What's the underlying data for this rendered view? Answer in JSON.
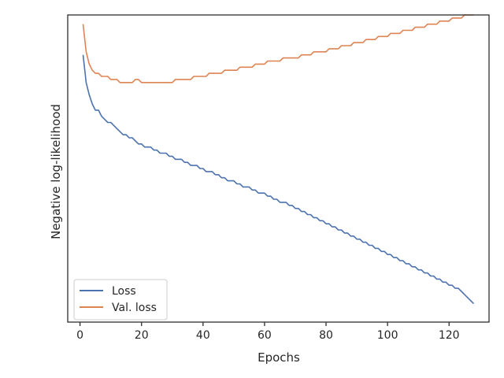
{
  "chart_data": {
    "type": "line",
    "xlabel": "Epochs",
    "ylabel": "Negative log-likelihood",
    "xlim": [
      -4,
      133
    ],
    "ylim": [
      0,
      1
    ],
    "xticks": [
      0,
      20,
      40,
      60,
      80,
      100,
      120
    ],
    "xtick_labels": [
      "0",
      "20",
      "40",
      "60",
      "80",
      "100",
      "120"
    ],
    "yticks_visible": false,
    "grid": false,
    "legend_position": "lower-left",
    "series": [
      {
        "name": "Loss",
        "color": "#4c72b0",
        "x": [
          1,
          2,
          3,
          4,
          5,
          6,
          7,
          8,
          9,
          10,
          11,
          12,
          13,
          14,
          15,
          16,
          17,
          18,
          19,
          20,
          21,
          22,
          23,
          24,
          25,
          26,
          27,
          28,
          29,
          30,
          31,
          32,
          33,
          34,
          35,
          36,
          37,
          38,
          39,
          40,
          41,
          42,
          43,
          44,
          45,
          46,
          47,
          48,
          49,
          50,
          51,
          52,
          53,
          54,
          55,
          56,
          57,
          58,
          59,
          60,
          61,
          62,
          63,
          64,
          65,
          66,
          67,
          68,
          69,
          70,
          71,
          72,
          73,
          74,
          75,
          76,
          77,
          78,
          79,
          80,
          81,
          82,
          83,
          84,
          85,
          86,
          87,
          88,
          89,
          90,
          91,
          92,
          93,
          94,
          95,
          96,
          97,
          98,
          99,
          100,
          101,
          102,
          103,
          104,
          105,
          106,
          107,
          108,
          109,
          110,
          111,
          112,
          113,
          114,
          115,
          116,
          117,
          118,
          119,
          120,
          121,
          122,
          123,
          124,
          125,
          126,
          127,
          128
        ],
        "y": [
          0.87,
          0.78,
          0.74,
          0.71,
          0.69,
          0.69,
          0.67,
          0.66,
          0.65,
          0.65,
          0.64,
          0.63,
          0.62,
          0.61,
          0.61,
          0.6,
          0.6,
          0.59,
          0.58,
          0.58,
          0.57,
          0.57,
          0.57,
          0.56,
          0.56,
          0.55,
          0.55,
          0.55,
          0.54,
          0.54,
          0.53,
          0.53,
          0.53,
          0.52,
          0.52,
          0.51,
          0.51,
          0.51,
          0.5,
          0.5,
          0.49,
          0.49,
          0.49,
          0.48,
          0.48,
          0.47,
          0.47,
          0.46,
          0.46,
          0.46,
          0.45,
          0.45,
          0.44,
          0.44,
          0.44,
          0.43,
          0.43,
          0.42,
          0.42,
          0.42,
          0.41,
          0.41,
          0.4,
          0.4,
          0.39,
          0.39,
          0.39,
          0.38,
          0.38,
          0.37,
          0.37,
          0.36,
          0.36,
          0.35,
          0.35,
          0.34,
          0.34,
          0.33,
          0.33,
          0.32,
          0.32,
          0.31,
          0.31,
          0.3,
          0.3,
          0.29,
          0.29,
          0.28,
          0.28,
          0.27,
          0.27,
          0.26,
          0.26,
          0.25,
          0.25,
          0.24,
          0.24,
          0.23,
          0.23,
          0.22,
          0.22,
          0.21,
          0.21,
          0.2,
          0.2,
          0.19,
          0.19,
          0.18,
          0.18,
          0.17,
          0.17,
          0.16,
          0.16,
          0.15,
          0.15,
          0.14,
          0.14,
          0.13,
          0.13,
          0.12,
          0.12,
          0.11,
          0.11,
          0.1,
          0.09,
          0.08,
          0.07,
          0.06
        ]
      },
      {
        "name": "Val. loss",
        "color": "#dd8452",
        "x": [
          1,
          2,
          3,
          4,
          5,
          6,
          7,
          8,
          9,
          10,
          11,
          12,
          13,
          14,
          15,
          16,
          17,
          18,
          19,
          20,
          21,
          22,
          23,
          24,
          25,
          26,
          27,
          28,
          29,
          30,
          31,
          32,
          33,
          34,
          35,
          36,
          37,
          38,
          39,
          40,
          41,
          42,
          43,
          44,
          45,
          46,
          47,
          48,
          49,
          50,
          51,
          52,
          53,
          54,
          55,
          56,
          57,
          58,
          59,
          60,
          61,
          62,
          63,
          64,
          65,
          66,
          67,
          68,
          69,
          70,
          71,
          72,
          73,
          74,
          75,
          76,
          77,
          78,
          79,
          80,
          81,
          82,
          83,
          84,
          85,
          86,
          87,
          88,
          89,
          90,
          91,
          92,
          93,
          94,
          95,
          96,
          97,
          98,
          99,
          100,
          101,
          102,
          103,
          104,
          105,
          106,
          107,
          108,
          109,
          110,
          111,
          112,
          113,
          114,
          115,
          116,
          117,
          118,
          119,
          120,
          121,
          122,
          123,
          124,
          125,
          126,
          127,
          128
        ],
        "y": [
          0.97,
          0.88,
          0.84,
          0.82,
          0.81,
          0.81,
          0.8,
          0.8,
          0.8,
          0.79,
          0.79,
          0.79,
          0.78,
          0.78,
          0.78,
          0.78,
          0.78,
          0.79,
          0.79,
          0.78,
          0.78,
          0.78,
          0.78,
          0.78,
          0.78,
          0.78,
          0.78,
          0.78,
          0.78,
          0.78,
          0.79,
          0.79,
          0.79,
          0.79,
          0.79,
          0.79,
          0.8,
          0.8,
          0.8,
          0.8,
          0.8,
          0.81,
          0.81,
          0.81,
          0.81,
          0.81,
          0.82,
          0.82,
          0.82,
          0.82,
          0.82,
          0.83,
          0.83,
          0.83,
          0.83,
          0.83,
          0.84,
          0.84,
          0.84,
          0.84,
          0.85,
          0.85,
          0.85,
          0.85,
          0.85,
          0.86,
          0.86,
          0.86,
          0.86,
          0.86,
          0.86,
          0.87,
          0.87,
          0.87,
          0.87,
          0.88,
          0.88,
          0.88,
          0.88,
          0.88,
          0.89,
          0.89,
          0.89,
          0.89,
          0.9,
          0.9,
          0.9,
          0.9,
          0.91,
          0.91,
          0.91,
          0.91,
          0.92,
          0.92,
          0.92,
          0.92,
          0.93,
          0.93,
          0.93,
          0.93,
          0.94,
          0.94,
          0.94,
          0.94,
          0.95,
          0.95,
          0.95,
          0.95,
          0.96,
          0.96,
          0.96,
          0.96,
          0.97,
          0.97,
          0.97,
          0.97,
          0.98,
          0.98,
          0.98,
          0.98,
          0.99,
          0.99,
          0.99,
          0.99,
          1.0,
          1.0,
          1.0,
          1.0
        ]
      }
    ]
  }
}
